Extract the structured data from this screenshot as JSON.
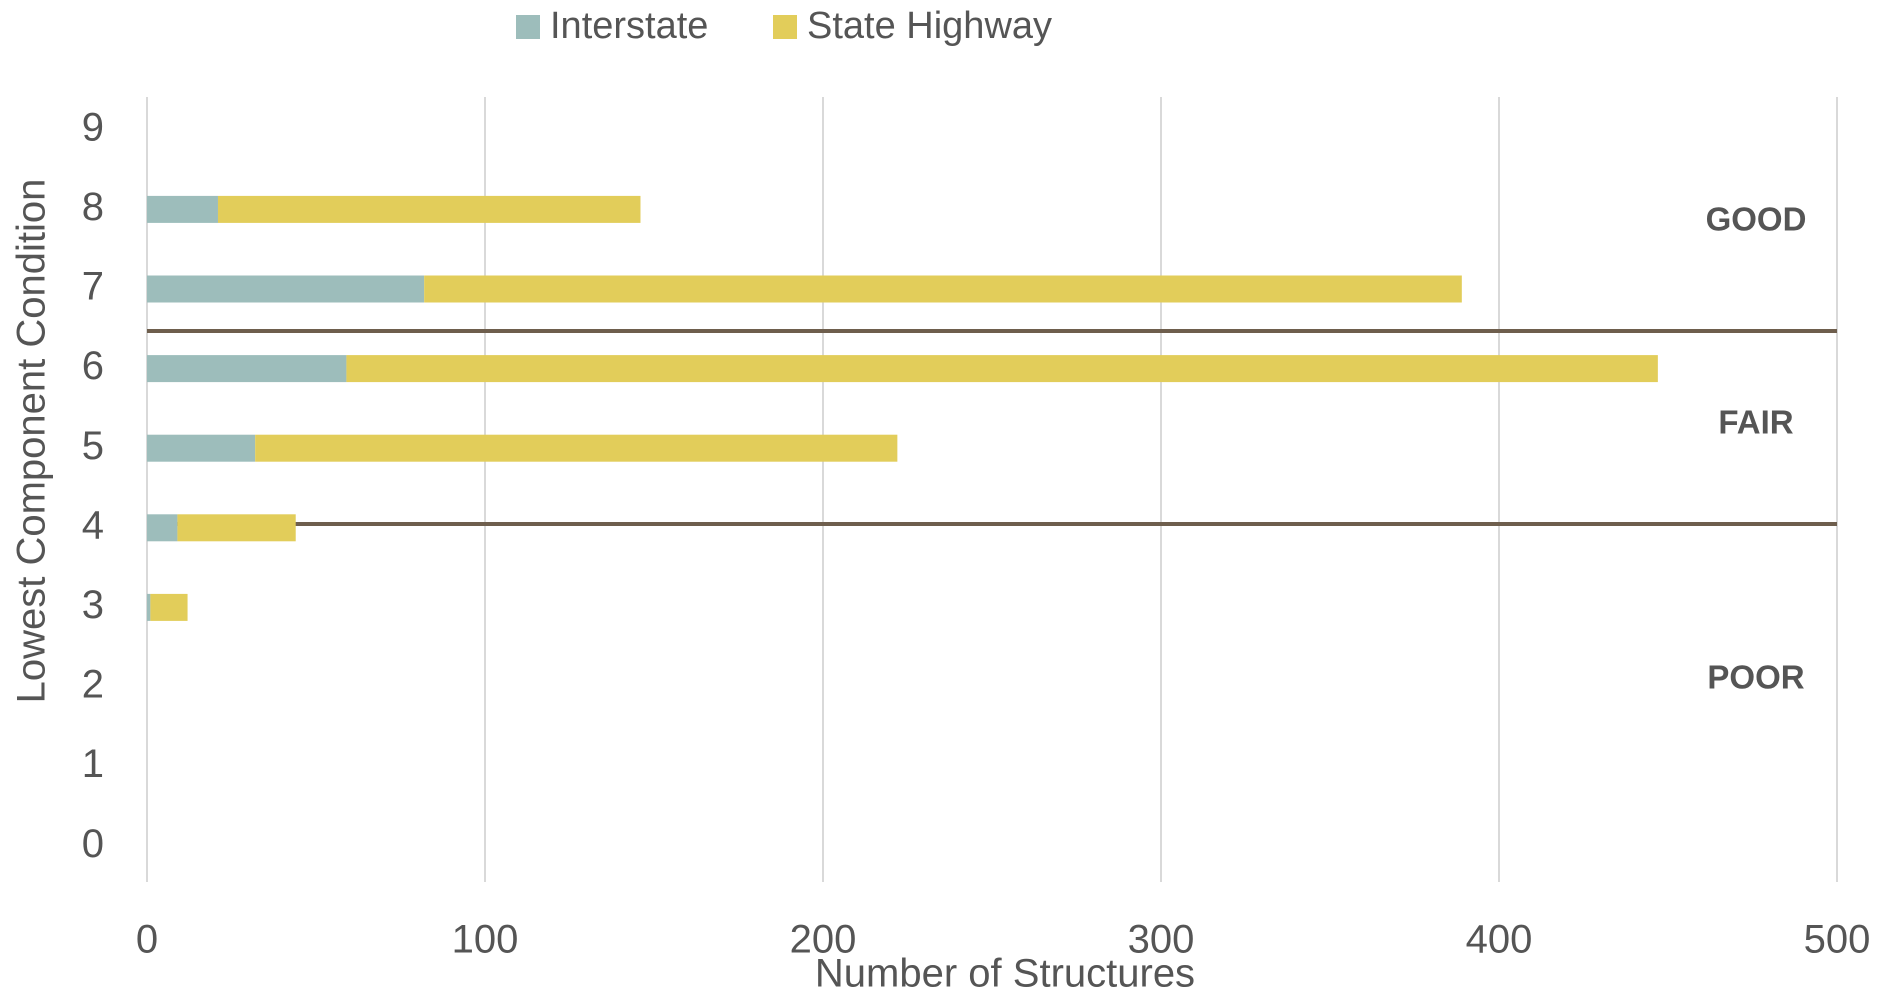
{
  "chart_data": {
    "type": "bar",
    "orientation": "horizontal",
    "stacked": true,
    "categories": [
      "9",
      "8",
      "7",
      "6",
      "5",
      "4",
      "3",
      "2",
      "1",
      "0"
    ],
    "series": [
      {
        "name": "Interstate",
        "color": "#9dbdbb",
        "values": [
          0,
          21,
          82,
          59,
          32,
          9,
          1,
          0,
          0,
          0
        ]
      },
      {
        "name": "State Highway",
        "color": "#e2cd5a",
        "values": [
          0,
          125,
          307,
          388,
          190,
          35,
          11,
          0,
          0,
          0
        ]
      }
    ],
    "xlabel": "Number of Structures",
    "ylabel": "Lowest Component Condition",
    "xlim": [
      0,
      500
    ],
    "xticks": [
      0,
      100,
      200,
      300,
      400,
      500
    ],
    "grid": true,
    "legend": "top",
    "annotations": [
      "GOOD",
      "FAIR",
      "POOR"
    ]
  }
}
